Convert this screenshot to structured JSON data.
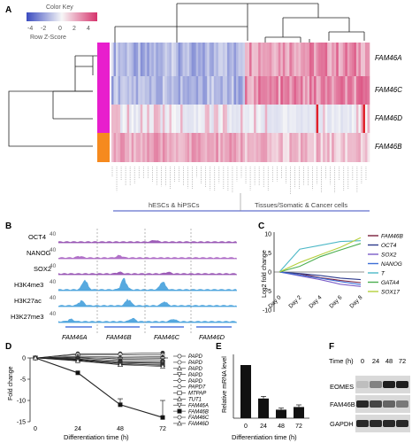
{
  "panels": {
    "A": "A",
    "B": "B",
    "C": "C",
    "D": "D",
    "E": "E",
    "F": "F"
  },
  "panelA": {
    "color_key_title": "Color Key",
    "color_key_subtitle": "Row Z-Score",
    "color_key_ticks": [
      "-4",
      "-2",
      "0",
      "2",
      "4"
    ],
    "rows": [
      "FAM46A",
      "FAM46C",
      "FAM46D",
      "FAM46B"
    ],
    "row_group_colors": [
      "#e81ecd",
      "#e81ecd",
      "#e81ecd",
      "#f68a1e"
    ],
    "group_labels": [
      "hESCs & hiPSCs",
      "Tissues/Somatic & Cancer cells"
    ],
    "colors": {
      "low": "#3b4cc0",
      "mid": "#f7f7f7",
      "high": "#d6336c",
      "hot": "#e0202a"
    }
  },
  "panelB": {
    "tracks": [
      {
        "label": "OCT4",
        "scale": "40",
        "color": "#8e44ad"
      },
      {
        "label": "NANOG",
        "scale": "40",
        "color": "#a55bbf"
      },
      {
        "label": "SOX2",
        "scale": "40",
        "color": "#8e44ad"
      },
      {
        "label": "H3K4me3",
        "scale": "40",
        "color": "#3a9ad9"
      },
      {
        "label": "H3K27ac",
        "scale": "40",
        "color": "#3a9ad9"
      },
      {
        "label": "H3K27me3",
        "scale": "40",
        "color": "#3a9ad9"
      }
    ],
    "genes": [
      "FAM46A",
      "FAM46B",
      "FAM46C",
      "FAM46D"
    ]
  },
  "panelC": {
    "chart_data": {
      "type": "line",
      "x": [
        "Day 0",
        "Day 2",
        "Day 4",
        "Day 6",
        "Day 8"
      ],
      "ylabel": "Log2 fold change",
      "ylim": [
        -10,
        10
      ],
      "yticks": [
        "10",
        "5",
        "0",
        "-5",
        "-10"
      ],
      "series": [
        {
          "name": "FAM46B",
          "color": "#7b1e3c",
          "values": [
            0,
            -0.5,
            -1.5,
            -2.2,
            -2.8
          ]
        },
        {
          "name": "OCT4",
          "color": "#2d3a8c",
          "values": [
            0,
            -0.4,
            -0.9,
            -1.6,
            -2.0
          ]
        },
        {
          "name": "SOX2",
          "color": "#7a5cc7",
          "values": [
            0,
            -1.0,
            -2.0,
            -3.2,
            -3.8
          ]
        },
        {
          "name": "NANOG",
          "color": "#3d6fd6",
          "values": [
            0,
            -0.8,
            -1.6,
            -2.5,
            -3.3
          ]
        },
        {
          "name": "T",
          "color": "#4db8c7",
          "values": [
            0,
            6.0,
            7.0,
            8.0,
            8.2
          ]
        },
        {
          "name": "GATA4",
          "color": "#4caf50",
          "values": [
            0,
            1.5,
            4.0,
            5.8,
            7.5
          ]
        },
        {
          "name": "SOX17",
          "color": "#b5cf3c",
          "values": [
            0,
            2.5,
            4.5,
            6.5,
            9.0
          ]
        }
      ]
    }
  },
  "panelD": {
    "chart_data": {
      "type": "line",
      "x": [
        0,
        24,
        48,
        72
      ],
      "xlabel": "Differentiation time (h)",
      "ylabel": "Fold change",
      "ylim": [
        -15,
        0
      ],
      "yticks": [
        "0",
        "-5",
        "-10",
        "-15"
      ],
      "xticks": [
        "0",
        "24",
        "48",
        "72"
      ],
      "series": [
        {
          "name": "PAPD",
          "values": [
            0,
            1,
            1,
            1.2
          ],
          "marker": "o"
        },
        {
          "name": "PAPD",
          "values": [
            0,
            0.8,
            0.8,
            0.7
          ],
          "marker": "o"
        },
        {
          "name": "PAPD",
          "values": [
            0,
            0.4,
            0.2,
            0.3
          ],
          "marker": "^"
        },
        {
          "name": "PAPD",
          "values": [
            0,
            0.2,
            -0.3,
            -0.2
          ],
          "marker": "v"
        },
        {
          "name": "PAPD",
          "values": [
            0,
            0,
            -0.6,
            -0.6
          ],
          "marker": "D"
        },
        {
          "name": "PAPD7",
          "values": [
            0,
            -0.2,
            -0.9,
            -1.0
          ],
          "marker": "o"
        },
        {
          "name": "MTPAP",
          "values": [
            0,
            -0.4,
            -1.2,
            -1.3
          ],
          "marker": "s"
        },
        {
          "name": "TUT1",
          "values": [
            0,
            -0.6,
            -1.5,
            -1.6
          ],
          "marker": "^"
        },
        {
          "name": "FAM46A",
          "values": [
            0,
            -0.3,
            -1.0,
            -1.2
          ],
          "marker": "v"
        },
        {
          "name": "FAM46B",
          "values": [
            0,
            -3.5,
            -11.0,
            -14.0
          ],
          "marker": "s",
          "bold": true
        },
        {
          "name": "FAM46C",
          "values": [
            0,
            -0.5,
            -1.3,
            -1.8
          ],
          "marker": "o"
        },
        {
          "name": "FAM46D",
          "values": [
            0,
            -0.7,
            -1.6,
            -2.0
          ],
          "marker": "^"
        }
      ]
    }
  },
  "panelE": {
    "chart_data": {
      "type": "bar",
      "categories": [
        "0",
        "24",
        "48",
        "72"
      ],
      "values": [
        1.0,
        0.37,
        0.16,
        0.21
      ],
      "errors": [
        0,
        0.04,
        0.03,
        0.04
      ],
      "xlabel": "Differentiation time (h)",
      "ylabel": "Relative mRNA level",
      "ylim": [
        0,
        1.2
      ]
    }
  },
  "panelF": {
    "time_label": "Time (h)",
    "times": [
      "0",
      "24",
      "48",
      "72"
    ],
    "blots": [
      {
        "label": "EOMES",
        "intensity": [
          0.15,
          0.45,
          0.95,
          0.95
        ]
      },
      {
        "label": "FAM46B",
        "intensity": [
          0.9,
          0.75,
          0.6,
          0.5
        ]
      },
      {
        "label": "GAPDH",
        "intensity": [
          0.9,
          0.9,
          0.9,
          0.9
        ]
      }
    ]
  }
}
